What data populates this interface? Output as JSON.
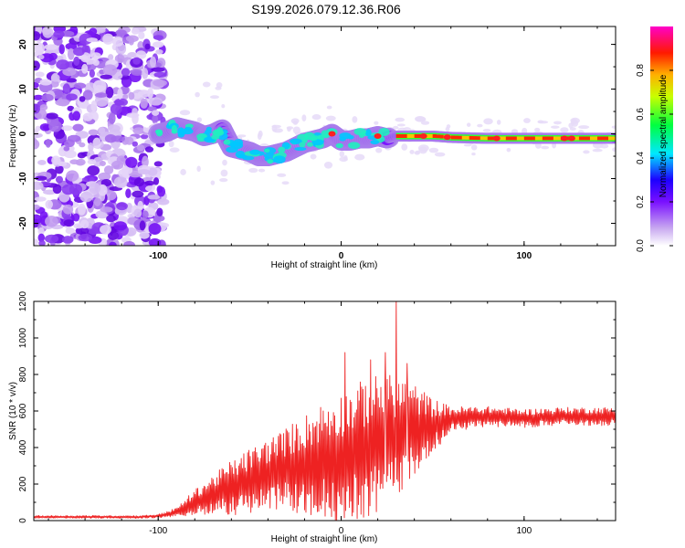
{
  "title": "S199.2026.079.12.36.R06",
  "chart_data": [
    {
      "type": "heatmap",
      "title": "S199.2026.079.12.36.R06",
      "xlabel": "Height of straight line (km)",
      "ylabel": "Frequency (Hz)",
      "xlim": [
        -168,
        150
      ],
      "ylim": [
        -25,
        24
      ],
      "xticks": [
        -100,
        0,
        100
      ],
      "yticks": [
        -20,
        -10,
        0,
        10,
        20
      ],
      "colorbar": {
        "label": "Normalized spectral amplitude",
        "range": [
          0,
          1
        ],
        "ticks": [
          "0.0",
          "0.2",
          "0.4",
          "0.6",
          "0.8"
        ],
        "tick_values": [
          0.0,
          0.2,
          0.4,
          0.6,
          0.8
        ]
      },
      "ridge": {
        "x": [
          -100,
          -95,
          -90,
          -85,
          -80,
          -75,
          -70,
          -65,
          -60,
          -55,
          -50,
          -45,
          -40,
          -35,
          -30,
          -25,
          -20,
          -15,
          -10,
          -5,
          0,
          5,
          10,
          15,
          20,
          25,
          30,
          40,
          50,
          60,
          80,
          100,
          120,
          150
        ],
        "frequency": [
          0,
          0.5,
          1.5,
          1.0,
          0.5,
          -0.5,
          0,
          1.0,
          -3.0,
          -3.5,
          -4.0,
          -5.0,
          -5.0,
          -4.5,
          -4.0,
          -3.0,
          -2.0,
          -1.5,
          -1.0,
          0,
          -1.5,
          -1.5,
          -1.0,
          -1.0,
          -0.5,
          -1.0,
          -0.5,
          -0.5,
          -0.5,
          -0.8,
          -1.0,
          -1.0,
          -1.0,
          -1.0
        ]
      },
      "noise_region": {
        "x_from": -168,
        "x_to": -97
      }
    },
    {
      "type": "line",
      "xlabel": "Height of straight line (km)",
      "ylabel": "SNR (10 * v/v)",
      "xlim": [
        -168,
        150
      ],
      "ylim": [
        0,
        1200
      ],
      "xticks": [
        -100,
        0,
        100
      ],
      "yticks": [
        0,
        200,
        400,
        600,
        800,
        1000,
        1200
      ],
      "series": [
        {
          "name": "SNR",
          "color": "#ee2222",
          "envelope_x": [
            -168,
            -110,
            -100,
            -90,
            -80,
            -70,
            -60,
            -50,
            -40,
            -30,
            -20,
            -10,
            0,
            10,
            20,
            30,
            40,
            50,
            60,
            80,
            100,
            120,
            150
          ],
          "envelope_mid": [
            20,
            20,
            25,
            45,
            100,
            140,
            180,
            215,
            250,
            280,
            300,
            330,
            350,
            380,
            420,
            460,
            500,
            520,
            555,
            570,
            560,
            570,
            570
          ],
          "envelope_amp": [
            8,
            8,
            10,
            25,
            70,
            110,
            150,
            180,
            200,
            230,
            280,
            320,
            350,
            380,
            380,
            340,
            250,
            150,
            70,
            55,
            50,
            50,
            50
          ],
          "spikes": [
            {
              "x": 30,
              "y": 1200
            },
            {
              "x": 2,
              "y": 920
            },
            {
              "x": 16,
              "y": 880
            },
            {
              "x": 24,
              "y": 920
            },
            {
              "x": 36,
              "y": 860
            }
          ]
        }
      ]
    }
  ]
}
